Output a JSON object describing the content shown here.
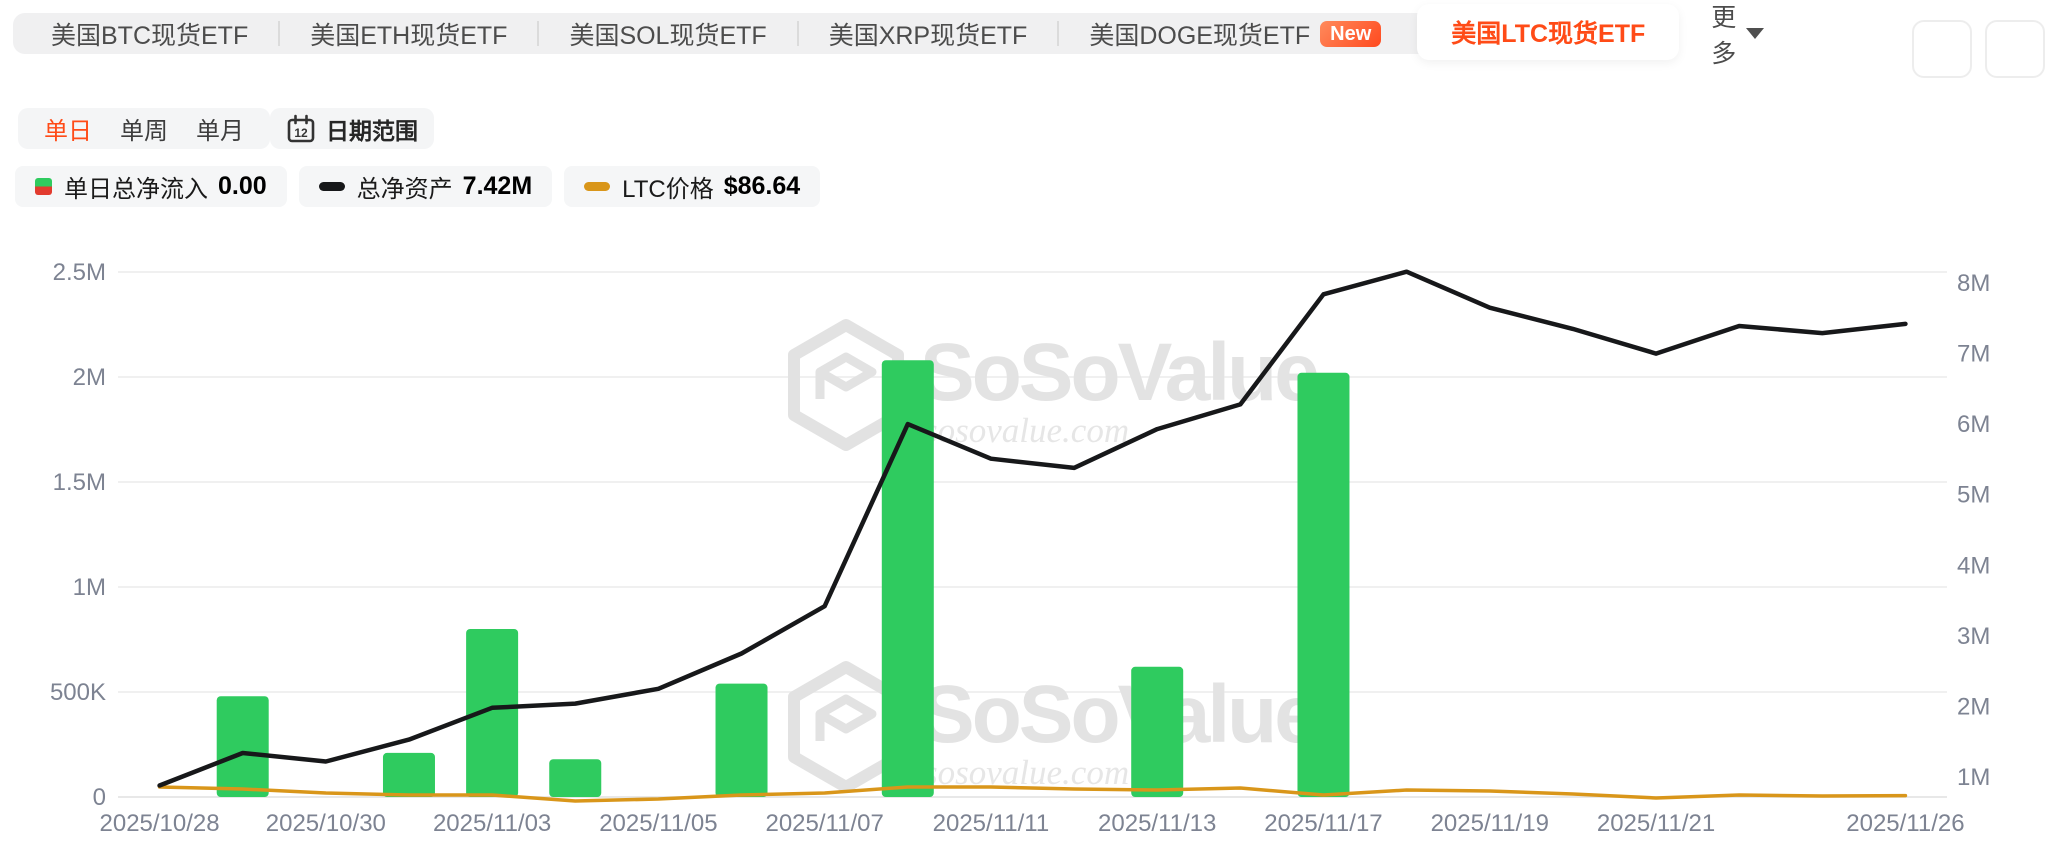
{
  "header": {
    "tabs": [
      {
        "label": "美国BTC现货ETF",
        "active": false
      },
      {
        "label": "美国ETH现货ETF",
        "active": false
      },
      {
        "label": "美国SOL现货ETF",
        "active": false
      },
      {
        "label": "美国XRP现货ETF",
        "active": false
      },
      {
        "label": "美国DOGE现货ETF",
        "active": false,
        "badge": "New"
      },
      {
        "label": "美国LTC现货ETF",
        "active": true
      }
    ],
    "more_label": "更多"
  },
  "period": {
    "options": [
      {
        "label": "单日",
        "active": true
      },
      {
        "label": "单周",
        "active": false
      },
      {
        "label": "单月",
        "active": false
      }
    ],
    "date_range_label": "日期范围",
    "calendar_icon_text": "12"
  },
  "legend": [
    {
      "icon": "bar",
      "label": "单日总净流入",
      "value": "0.00"
    },
    {
      "icon": "black-line",
      "label": "总净资产",
      "value": "7.42M"
    },
    {
      "icon": "orange-line",
      "label": "LTC价格",
      "value": "$86.64"
    }
  ],
  "watermark": {
    "title": "SoSoValue",
    "domain": "sosovalue.com"
  },
  "colors": {
    "accent": "#FF4B17",
    "bar_green": "#2FCB5F",
    "legend_red": "#E23B2E",
    "assets_line": "#17181A",
    "price_line": "#D9961A",
    "tick_label": "#7D8392",
    "gridline": "#ECECEC",
    "axis_line": "#E0E0E0"
  },
  "chart_data": {
    "type": "bar+line combo",
    "x": [
      "2025/10/28",
      "2025/10/29",
      "2025/10/30",
      "2025/10/31",
      "2025/11/03",
      "2025/11/04",
      "2025/11/05",
      "2025/11/06",
      "2025/11/07",
      "2025/11/10",
      "2025/11/11",
      "2025/11/12",
      "2025/11/13",
      "2025/11/14",
      "2025/11/17",
      "2025/11/18",
      "2025/11/19",
      "2025/11/20",
      "2025/11/21",
      "2025/11/24",
      "2025/11/25",
      "2025/11/26"
    ],
    "x_axis_labels": [
      "2025/10/28",
      "2025/10/30",
      "2025/11/03",
      "2025/11/05",
      "2025/11/07",
      "2025/11/11",
      "2025/11/13",
      "2025/11/17",
      "2025/11/19",
      "2025/11/21",
      "2025/11/26"
    ],
    "x_axis_label_indices": [
      0,
      2,
      4,
      6,
      8,
      10,
      12,
      14,
      16,
      18,
      21
    ],
    "series": [
      {
        "name": "单日总净流入",
        "type": "bar",
        "axis": "left",
        "unit": "M USD",
        "values": [
          0,
          0.48,
          0,
          0.21,
          0.8,
          0.18,
          0,
          0.54,
          0,
          2.08,
          0,
          0,
          0.62,
          0,
          2.02,
          0,
          0,
          0,
          0,
          0,
          0,
          0
        ]
      },
      {
        "name": "总净资产",
        "type": "line",
        "axis": "right",
        "unit": "M USD",
        "values": [
          0.88,
          1.34,
          1.22,
          1.53,
          1.98,
          2.04,
          2.25,
          2.75,
          3.42,
          6.0,
          5.51,
          5.38,
          5.93,
          6.28,
          7.84,
          8.16,
          7.65,
          7.35,
          7.0,
          7.39,
          7.29,
          7.42
        ]
      },
      {
        "name": "LTC价格",
        "type": "line",
        "axis": "price",
        "unit": "USD",
        "values": [
          96.5,
          94.2,
          89.6,
          87.3,
          87.3,
          80.4,
          82.7,
          87.3,
          89.6,
          96.5,
          96.5,
          94.2,
          93.1,
          95.4,
          87.3,
          93.1,
          91.9,
          88.5,
          83.9,
          87.3,
          86.2,
          86.64
        ]
      }
    ],
    "left_axis": {
      "ticks": [
        "0",
        "500K",
        "1M",
        "1.5M",
        "2M",
        "2.5M"
      ],
      "tick_values_m": [
        0,
        0.5,
        1,
        1.5,
        2,
        2.5
      ],
      "min": 0,
      "max": 2500000
    },
    "right_axis": {
      "ticks": [
        "1M",
        "2M",
        "3M",
        "4M",
        "5M",
        "6M",
        "7M",
        "8M"
      ],
      "tick_values_m": [
        1,
        2,
        3,
        4,
        5,
        6,
        7,
        8
      ]
    },
    "grid": true,
    "legend_position": "top-left"
  }
}
